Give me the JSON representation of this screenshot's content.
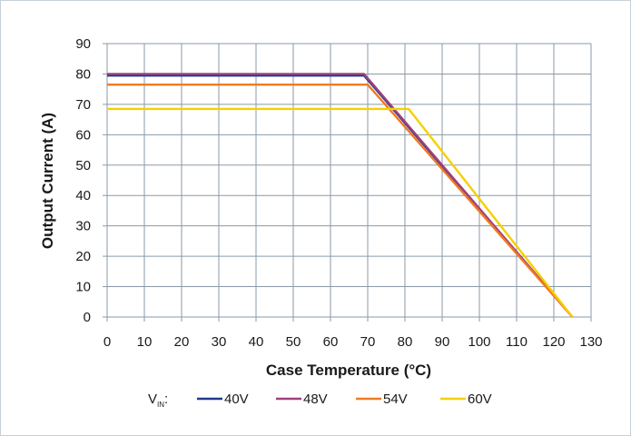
{
  "chart_data": {
    "type": "line",
    "title": "",
    "xlabel": "Case Temperature (°C)",
    "ylabel": "Output Current (A)",
    "xlim": [
      0,
      130
    ],
    "ylim": [
      0,
      90
    ],
    "xticks": [
      0,
      10,
      20,
      30,
      40,
      50,
      60,
      70,
      80,
      90,
      100,
      110,
      120,
      130
    ],
    "yticks": [
      0,
      10,
      20,
      30,
      40,
      50,
      60,
      70,
      80,
      90
    ],
    "grid": true,
    "legend": {
      "prefix": "V",
      "prefix_subscript": "IN",
      "prefix_suffix": ":",
      "placement": "bottom"
    },
    "series": [
      {
        "name": "40V",
        "color": "#1f3a8c",
        "x": [
          0,
          69,
          125
        ],
        "y": [
          79.5,
          79.5,
          0
        ]
      },
      {
        "name": "48V",
        "color": "#a0407e",
        "x": [
          0,
          69,
          125
        ],
        "y": [
          80,
          80,
          0
        ]
      },
      {
        "name": "54V",
        "color": "#f07a22",
        "x": [
          0,
          70,
          125
        ],
        "y": [
          76.5,
          76.5,
          0
        ]
      },
      {
        "name": "60V",
        "color": "#f5d000",
        "x": [
          0,
          81,
          125
        ],
        "y": [
          68.5,
          68.5,
          0
        ]
      }
    ]
  }
}
